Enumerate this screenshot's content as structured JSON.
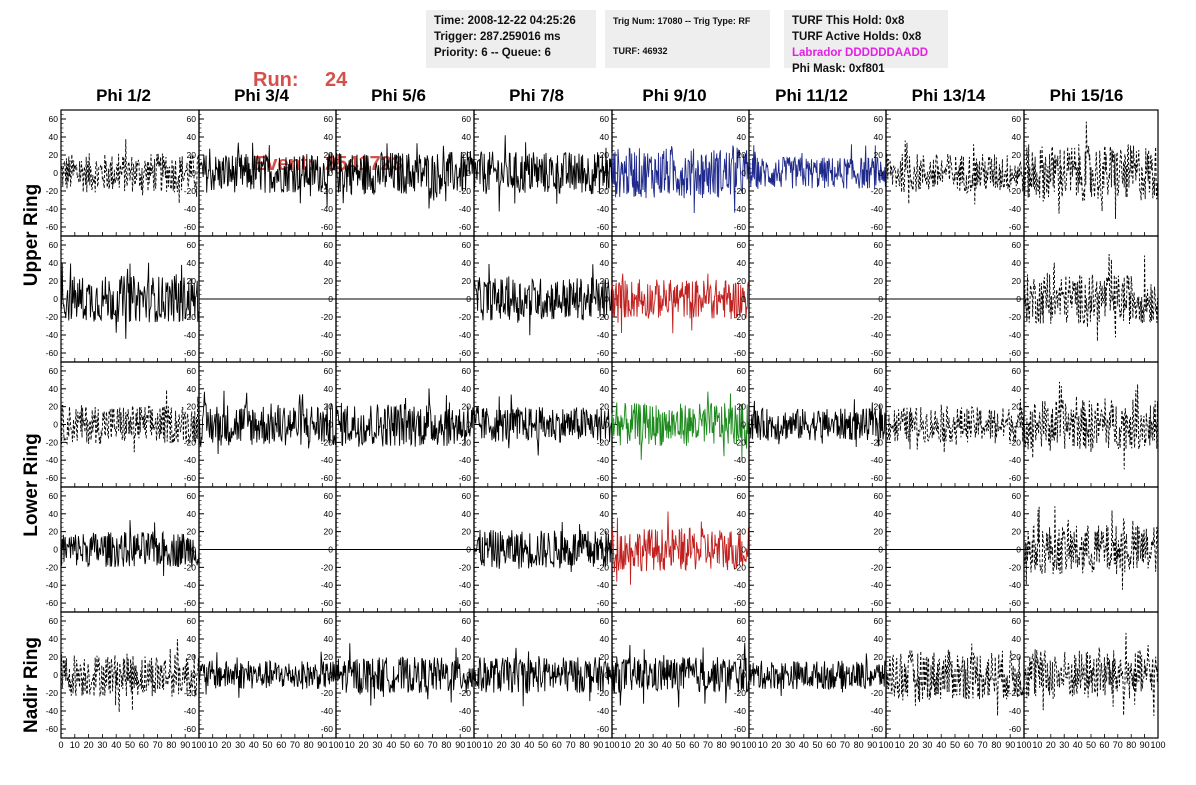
{
  "header": {
    "run_label": "Run:",
    "run_value": "24",
    "event_label": "Event:",
    "event_value": "2541723",
    "time": "Time: 2008-12-22 04:25:26",
    "trigger": "Trigger: 287.259016 ms",
    "priority": "Priority: 6 -- Queue: 6",
    "trig_num": "Trig Num: 17080 -- Trig Type: RF",
    "turf": "TURF: 46932",
    "turf_this_hold": "TURF This Hold: 0x8",
    "turf_active_holds": "TURF Active Holds: 0x8",
    "labrador": "Labrador DDDDDDAADD",
    "phi_mask": "Phi Mask: 0xf801"
  },
  "columns": [
    "Phi 1/2",
    "Phi 3/4",
    "Phi 5/6",
    "Phi 7/8",
    "Phi 9/10",
    "Phi 11/12",
    "Phi 13/14",
    "Phi 15/16"
  ],
  "rings": [
    "Upper Ring",
    "Lower Ring",
    "Nadir Ring"
  ],
  "colors": {
    "run_event": "#d4504a",
    "labrador": "#e61ee6",
    "info_bg": "#eeeeee",
    "trace_black": "#000000",
    "trace_blue": "#1f2a8c",
    "trace_red": "#c0201e",
    "trace_green": "#1c8a1c"
  },
  "chart_data": {
    "type": "line",
    "description_rows": [
      "upper-1",
      "upper-2",
      "lower-1",
      "lower-2",
      "nadir"
    ],
    "xlim": [
      0,
      100
    ],
    "ylim": [
      -70,
      70
    ],
    "x_ticks": [
      "0",
      "10",
      "20",
      "30",
      "40",
      "50",
      "60",
      "70",
      "80",
      "90",
      "100"
    ],
    "y_ticks": [
      "60",
      "40",
      "20",
      "0",
      "-20",
      "-40",
      "-60"
    ],
    "panels": [
      [
        {
          "style": "dashed",
          "color": "black",
          "amp": 22
        },
        {
          "style": "solid",
          "color": "black",
          "amp": 22
        },
        {
          "style": "solid",
          "color": "black",
          "amp": 24
        },
        {
          "style": "solid",
          "color": "black",
          "amp": 24
        },
        {
          "style": "solid",
          "color": "blue",
          "amp": 28
        },
        {
          "style": "solid",
          "color": "blue",
          "amp": 18
        },
        {
          "style": "dashed",
          "color": "black",
          "amp": 22
        },
        {
          "style": "dashed",
          "color": "black",
          "amp": 32
        }
      ],
      [
        {
          "style": "solid",
          "color": "black",
          "amp": 26
        },
        {
          "style": "flat",
          "color": "black",
          "amp": 0
        },
        {
          "style": "flat",
          "color": "black",
          "amp": 0
        },
        {
          "style": "solid",
          "color": "black",
          "amp": 24
        },
        {
          "style": "solid",
          "color": "red",
          "amp": 22
        },
        {
          "style": "flat",
          "color": "black",
          "amp": 0
        },
        {
          "style": "flat",
          "color": "black",
          "amp": 0
        },
        {
          "style": "dashed",
          "color": "black",
          "amp": 28
        }
      ],
      [
        {
          "style": "dashed",
          "color": "black",
          "amp": 22
        },
        {
          "style": "solid",
          "color": "black",
          "amp": 24
        },
        {
          "style": "solid",
          "color": "black",
          "amp": 25
        },
        {
          "style": "solid",
          "color": "black",
          "amp": 20
        },
        {
          "style": "solid",
          "color": "green",
          "amp": 24
        },
        {
          "style": "solid",
          "color": "black",
          "amp": 18
        },
        {
          "style": "dashed",
          "color": "black",
          "amp": 20
        },
        {
          "style": "dashed",
          "color": "black",
          "amp": 28
        }
      ],
      [
        {
          "style": "solid",
          "color": "black",
          "amp": 20
        },
        {
          "style": "flat",
          "color": "black",
          "amp": 0
        },
        {
          "style": "flat",
          "color": "black",
          "amp": 0
        },
        {
          "style": "solid",
          "color": "black",
          "amp": 22
        },
        {
          "style": "solid",
          "color": "red",
          "amp": 24
        },
        {
          "style": "flat",
          "color": "black",
          "amp": 0
        },
        {
          "style": "flat",
          "color": "black",
          "amp": 0
        },
        {
          "style": "dashed",
          "color": "black",
          "amp": 28
        }
      ],
      [
        {
          "style": "dashed",
          "color": "black",
          "amp": 24
        },
        {
          "style": "solid",
          "color": "black",
          "amp": 16
        },
        {
          "style": "solid",
          "color": "black",
          "amp": 20
        },
        {
          "style": "solid",
          "color": "black",
          "amp": 20
        },
        {
          "style": "solid",
          "color": "black",
          "amp": 20
        },
        {
          "style": "solid",
          "color": "black",
          "amp": 16
        },
        {
          "style": "dashed",
          "color": "black",
          "amp": 28
        },
        {
          "style": "dashed",
          "color": "black",
          "amp": 28
        }
      ]
    ]
  }
}
